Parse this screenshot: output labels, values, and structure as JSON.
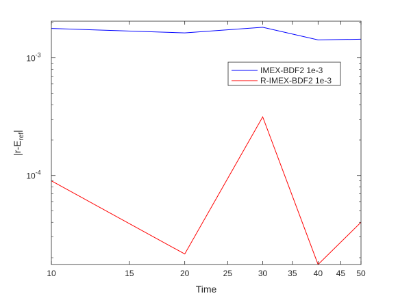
{
  "chart_data": {
    "type": "line",
    "title": "",
    "xlabel": "Time",
    "ylabel": {
      "main": "|r-E",
      "sub": "ref",
      "end": "|"
    },
    "x_scale": "log",
    "y_scale": "log",
    "xlim": [
      10,
      50
    ],
    "ylim": [
      1.75e-05,
      0.00205
    ],
    "x_ticks": [
      10,
      15,
      20,
      25,
      30,
      35,
      40,
      45,
      50
    ],
    "x_tick_labels": [
      "10",
      "15",
      "20",
      "25",
      "30",
      "35",
      "40",
      "45",
      "50"
    ],
    "y_ticks": [
      0.0001,
      0.001
    ],
    "y_tick_labels": [
      {
        "base": "10",
        "exp": "-4"
      },
      {
        "base": "10",
        "exp": "-3"
      }
    ],
    "grid": false,
    "legend_position": "upper-right",
    "series": [
      {
        "name": "IMEX-BDF2 1e-3",
        "color": "#0000ff",
        "x": [
          10,
          20,
          30,
          40,
          50
        ],
        "y": [
          0.00178,
          0.00163,
          0.00182,
          0.00142,
          0.00144
        ]
      },
      {
        "name": "R-IMEX-BDF2 1e-3",
        "color": "#ff0000",
        "x": [
          10,
          20,
          30,
          40,
          50
        ],
        "y": [
          9e-05,
          2.15e-05,
          0.000315,
          1.75e-05,
          4e-05
        ]
      }
    ]
  }
}
